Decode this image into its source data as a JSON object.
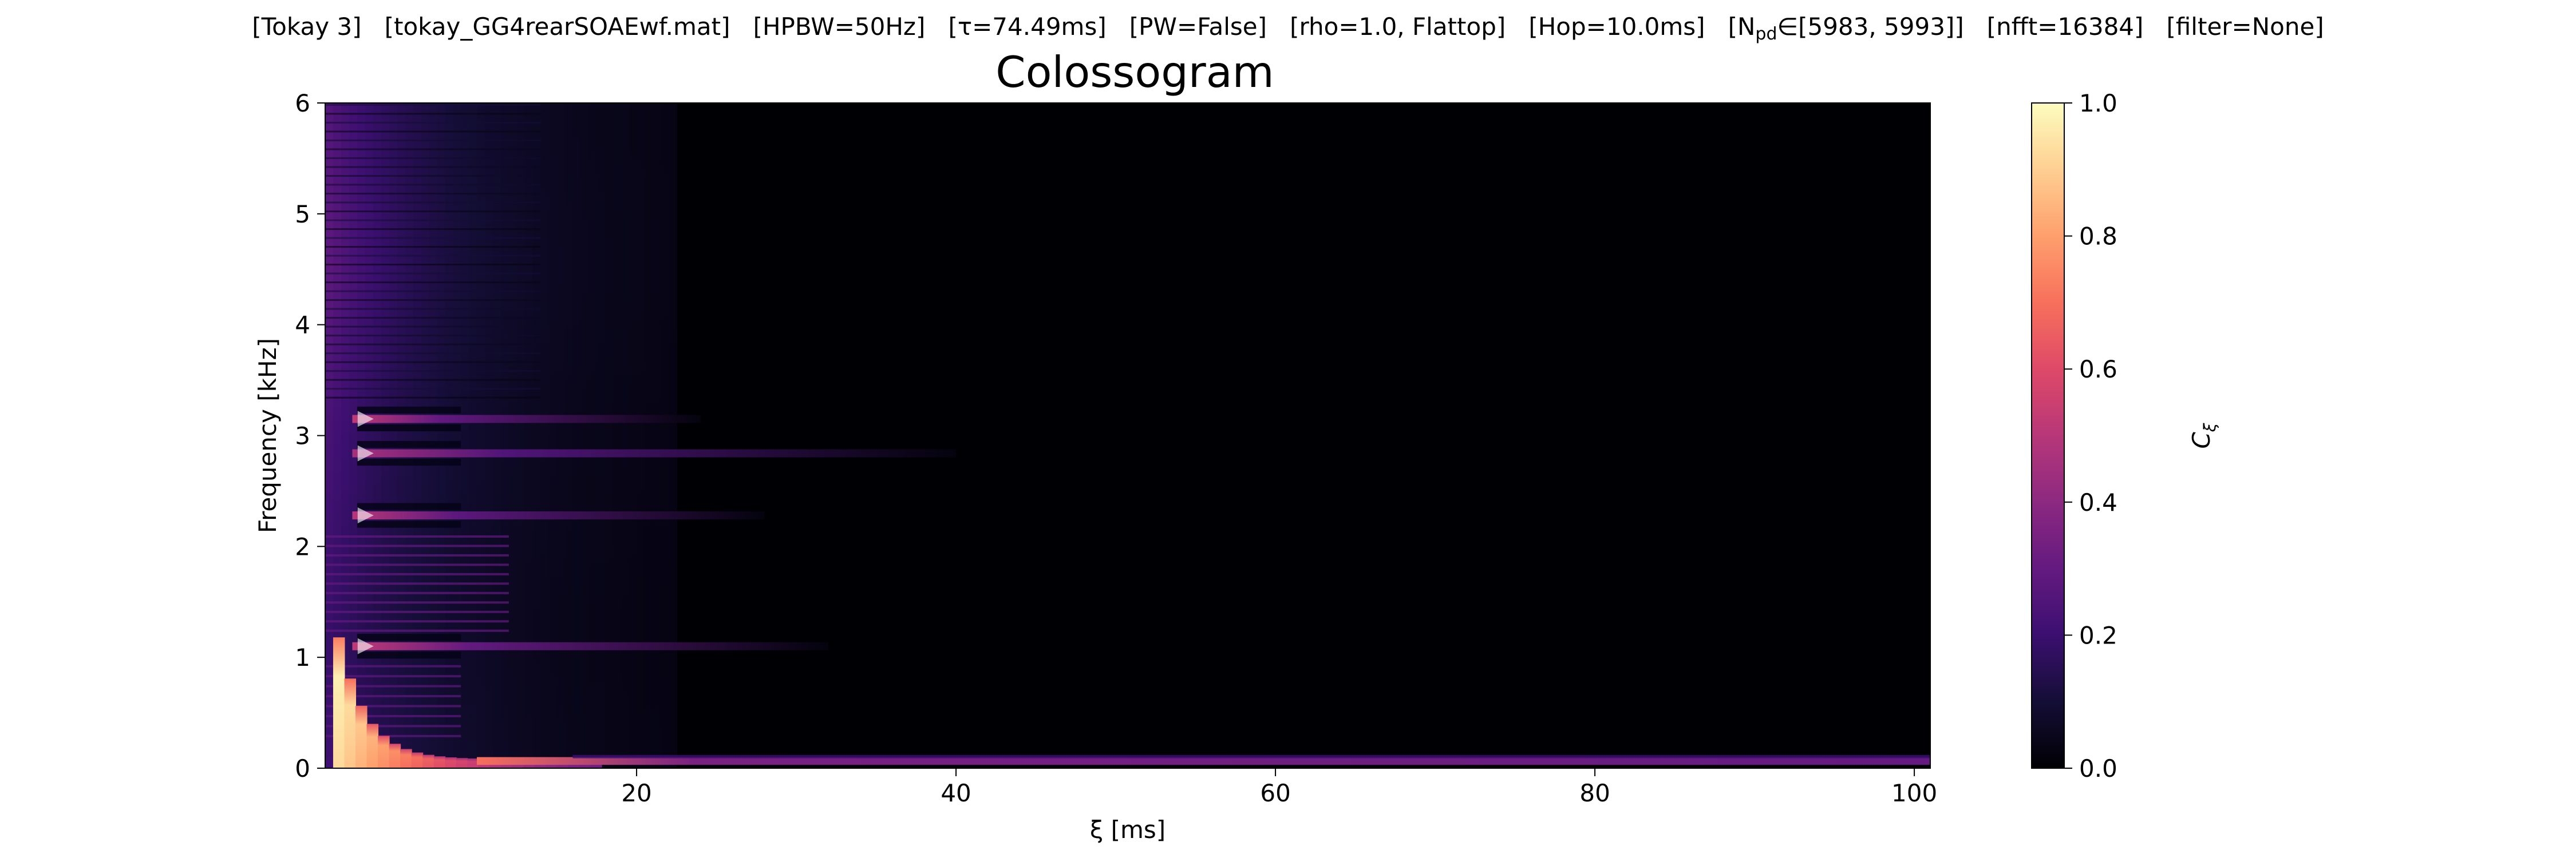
{
  "info_bar": {
    "tokay": "[Tokay 3]",
    "file": "[tokay_GG4rearSOAEwf.mat]",
    "hpbw": "[HPBW=50Hz]",
    "tau": "[τ=74.49ms]",
    "pw": "[PW=False]",
    "rho": "[rho=1.0, Flattop]",
    "hop": "[Hop=10.0ms]",
    "npd_prefix": "[N",
    "npd_sub": "pd",
    "npd_suffix": "∈[5983, 5993]]",
    "nfft": "[nfft=16384]",
    "filter": "[filter=None]"
  },
  "chart_data": {
    "type": "heatmap",
    "title": "Colossogram",
    "xlabel": "ξ [ms]",
    "ylabel": "Frequency [kHz]",
    "xlim": [
      0.5,
      101
    ],
    "ylim": [
      0,
      6
    ],
    "x_ticks": [
      20,
      40,
      60,
      80,
      100
    ],
    "y_ticks": [
      0,
      1,
      2,
      3,
      4,
      5,
      6
    ],
    "colormap": "magma",
    "colorbar": {
      "label": "C_ξ",
      "label_main": "C",
      "label_sub": "ξ",
      "range": [
        0.0,
        1.0
      ],
      "ticks": [
        0.0,
        0.2,
        0.4,
        0.6,
        0.8,
        1.0
      ],
      "tick_labels": [
        "0.0",
        "0.2",
        "0.4",
        "0.6",
        "0.8",
        "1.0"
      ]
    },
    "grid": false,
    "peak_markers_khz": [
      1.1,
      2.28,
      2.84,
      3.15
    ],
    "marker_xi_ms": 3
  }
}
